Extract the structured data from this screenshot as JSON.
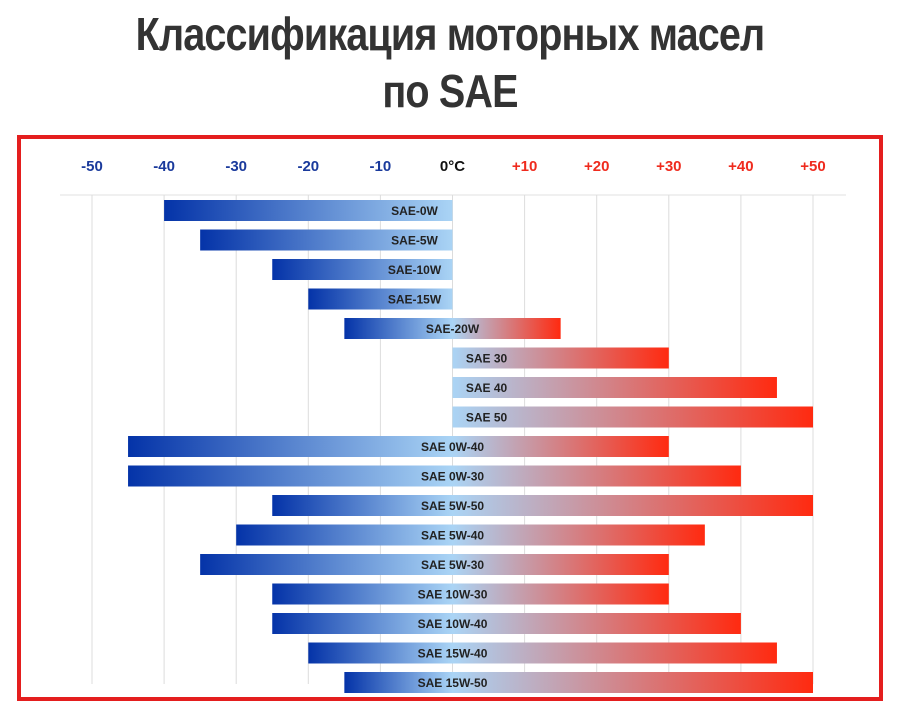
{
  "title_line1": "Классификация моторных масел",
  "title_line2": "по SAE",
  "colors": {
    "frame": "#e41e1e",
    "cold": "#0433a8",
    "mid": "#aad4f5",
    "warm": "#ff2a10",
    "neg_tick": "#1a3a9c",
    "pos_tick": "#ef2b1e",
    "zero_tick": "#111111"
  },
  "chart_data": {
    "type": "bar",
    "orientation": "horizontal-range",
    "title": "Классификация моторных масел по SAE",
    "xlim": [
      -50,
      50
    ],
    "grid": true,
    "x_ticks": [
      {
        "value": -50,
        "label": "-50"
      },
      {
        "value": -40,
        "label": "-40"
      },
      {
        "value": -30,
        "label": "-30"
      },
      {
        "value": -20,
        "label": "-20"
      },
      {
        "value": -10,
        "label": "-10"
      },
      {
        "value": 0,
        "label": "0°C"
      },
      {
        "value": 10,
        "label": "+10"
      },
      {
        "value": 20,
        "label": "+20"
      },
      {
        "value": 30,
        "label": "+30"
      },
      {
        "value": 40,
        "label": "+40"
      },
      {
        "value": 50,
        "label": "+50"
      }
    ],
    "bars": [
      {
        "label": "SAE-0W",
        "min": -40,
        "max": 0
      },
      {
        "label": "SAE-5W",
        "min": -35,
        "max": 0
      },
      {
        "label": "SAE-10W",
        "min": -25,
        "max": 0
      },
      {
        "label": "SAE-15W",
        "min": -20,
        "max": 0
      },
      {
        "label": "SAE-20W",
        "min": -15,
        "max": 15
      },
      {
        "label": "SAE 30",
        "min": 0,
        "max": 30
      },
      {
        "label": "SAE 40",
        "min": 0,
        "max": 45
      },
      {
        "label": "SAE 50",
        "min": 0,
        "max": 50
      },
      {
        "label": "SAE 0W-40",
        "min": -45,
        "max": 30
      },
      {
        "label": "SAE 0W-30",
        "min": -45,
        "max": 40
      },
      {
        "label": "SAE 5W-50",
        "min": -25,
        "max": 50
      },
      {
        "label": "SAE 5W-40",
        "min": -30,
        "max": 35
      },
      {
        "label": "SAE 5W-30",
        "min": -35,
        "max": 30
      },
      {
        "label": "SAE 10W-30",
        "min": -25,
        "max": 30
      },
      {
        "label": "SAE 10W-40",
        "min": -25,
        "max": 40
      },
      {
        "label": "SAE 15W-40",
        "min": -20,
        "max": 45
      },
      {
        "label": "SAE 15W-50",
        "min": -15,
        "max": 50
      }
    ]
  }
}
